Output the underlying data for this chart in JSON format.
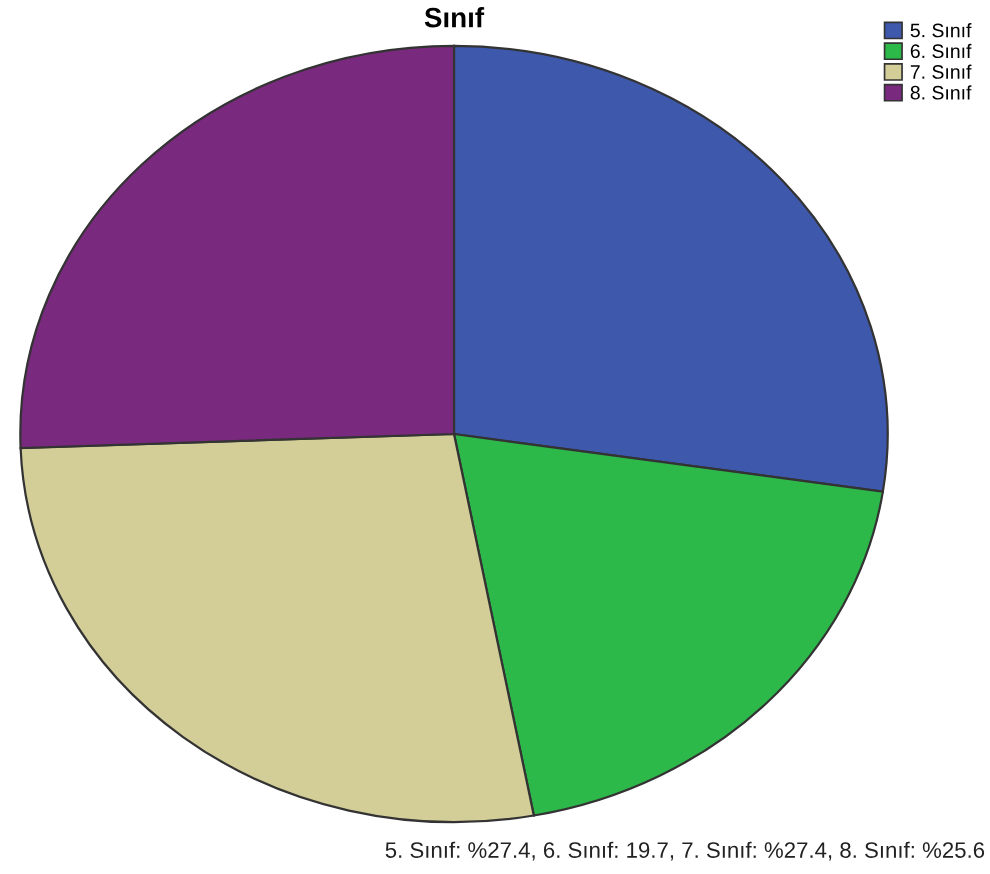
{
  "chart_data": {
    "type": "pie",
    "title": "Sınıf",
    "categories": [
      "5. Sınıf",
      "6. Sınıf",
      "7. Sınıf",
      "8. Sınıf"
    ],
    "values": [
      27.4,
      19.7,
      27.4,
      25.6
    ],
    "colors": [
      "#3e58ac",
      "#2db84a",
      "#d3ce97",
      "#7a2a7e"
    ],
    "legend": "top right",
    "annotations": [
      "5. Sınıf: %27.4, 6. Sınıf: 19.7, 7. Sınıf: %27.4, 8. Sınıf: %25.6"
    ]
  }
}
